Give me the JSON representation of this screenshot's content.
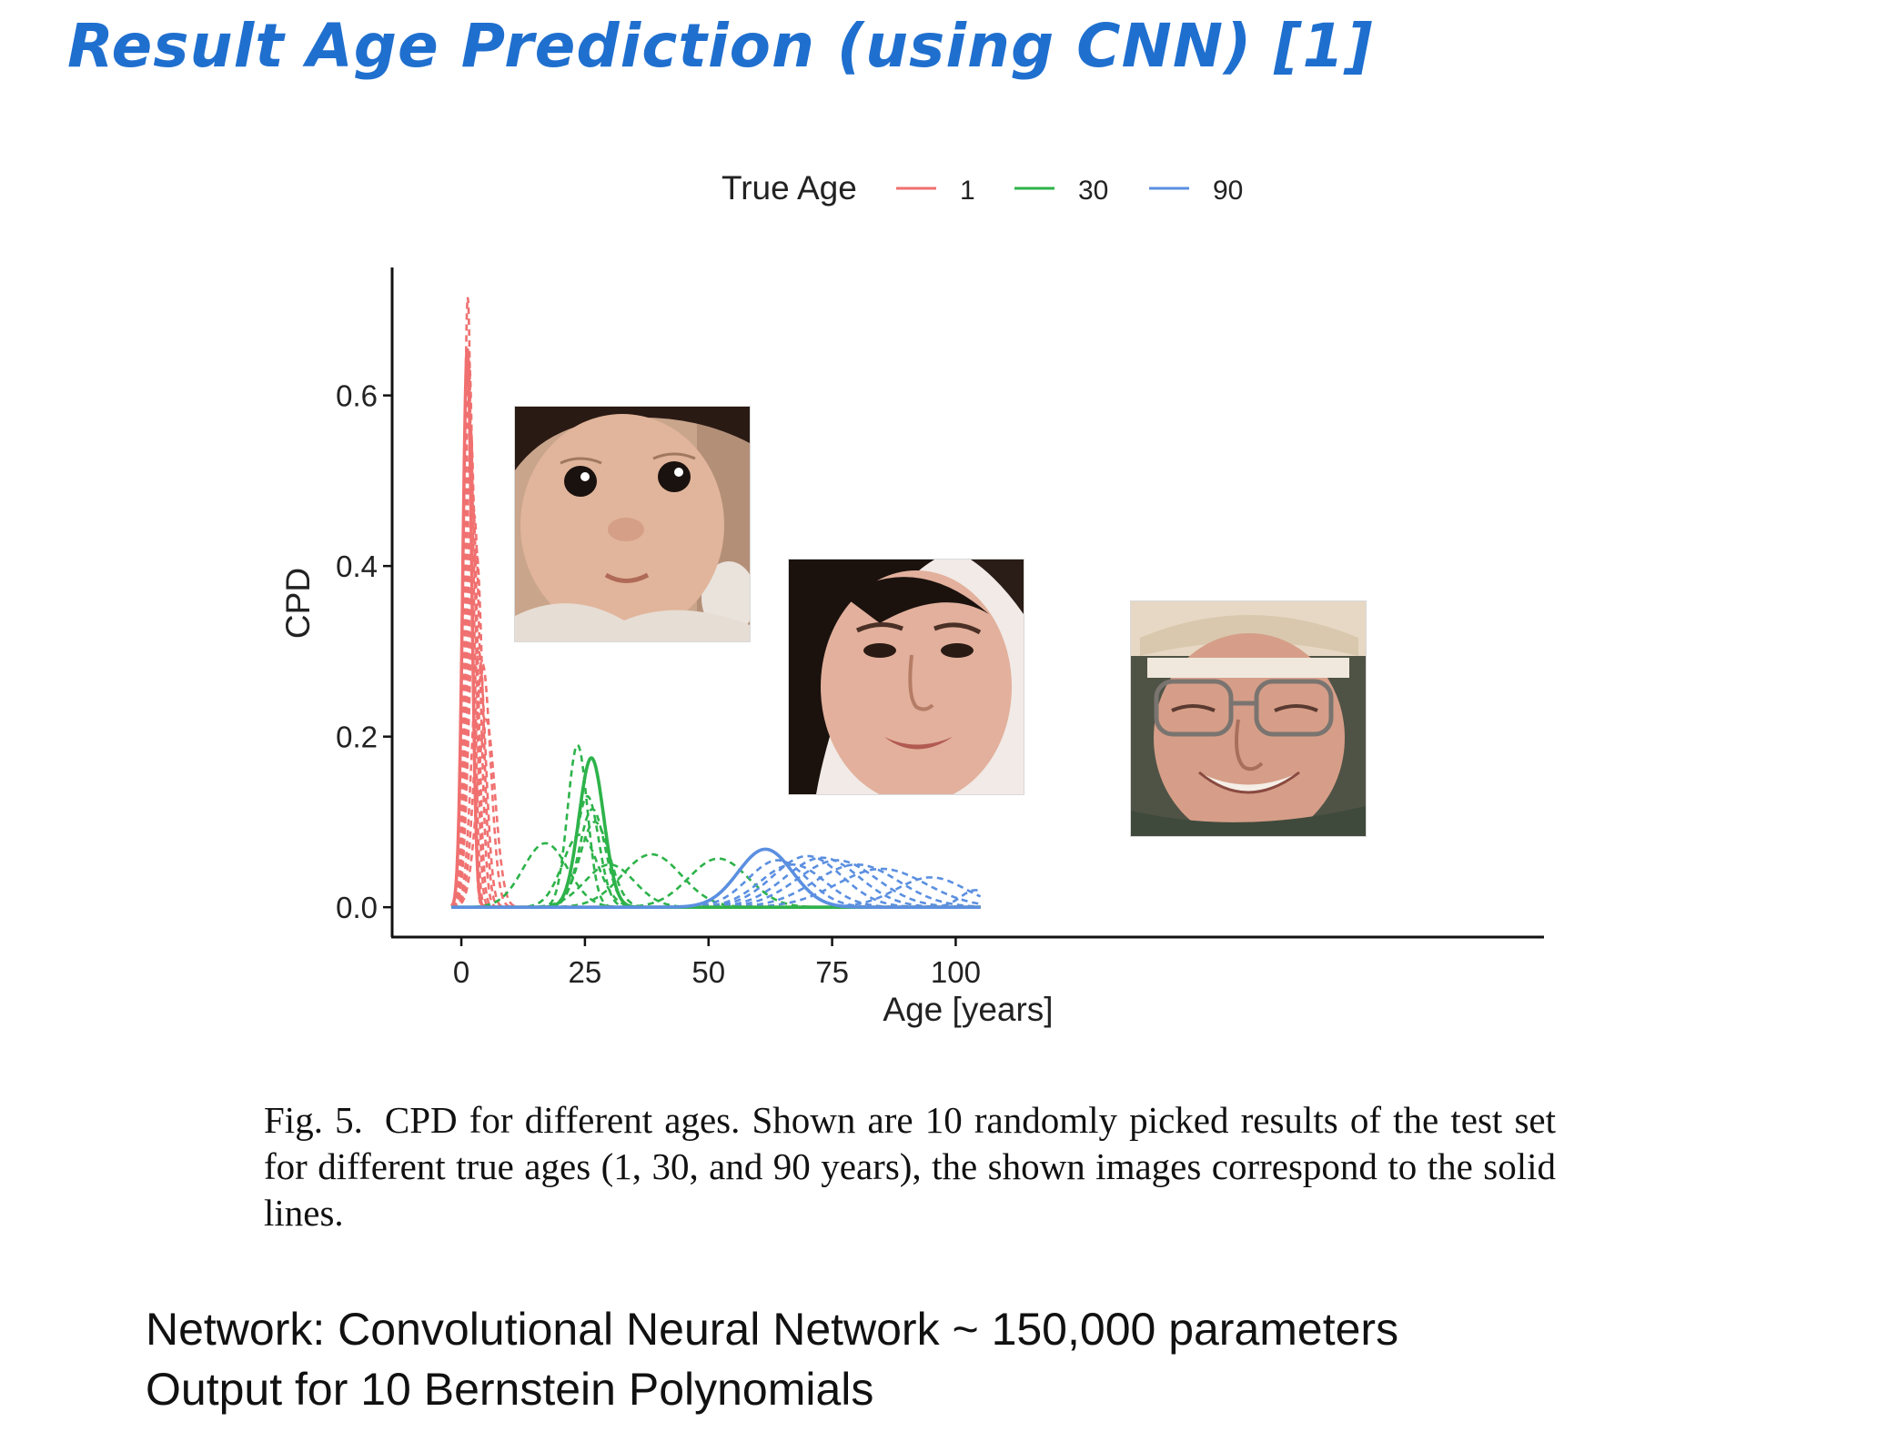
{
  "slide": {
    "title": "Result Age Prediction (using CNN) [1]",
    "title_color": "#1f6fcf"
  },
  "caption": {
    "label": "Fig. 5.",
    "text": "CPD for different ages. Shown are 10 randomly picked results of the test set for different true ages (1, 30, and 90 years), the shown images correspond to the solid lines."
  },
  "notes": {
    "line1": "Network: Convolutional Neural Network ~ 150,000 parameters",
    "line2": "Output for 10 Bernstein Polynomials"
  },
  "photos": [
    {
      "subject": "baby",
      "icon": "baby-face-photo"
    },
    {
      "subject": "young woman",
      "icon": "woman-face-photo"
    },
    {
      "subject": "elderly man",
      "icon": "old-man-face-photo"
    }
  ],
  "chart_data": {
    "type": "line",
    "title": "",
    "xlabel": "Age [years]",
    "ylabel": "CPD",
    "xlim": [
      -14,
      219
    ],
    "ylim": [
      -0.035,
      0.75
    ],
    "xticks": [
      0,
      25,
      50,
      75,
      100
    ],
    "yticks": [
      0.0,
      0.2,
      0.4,
      0.6
    ],
    "ytick_labels": [
      "0.0",
      "0.2",
      "0.4",
      "0.6"
    ],
    "grid": false,
    "legend": {
      "title": "True Age",
      "position": "top",
      "entries": [
        "1",
        "30",
        "90"
      ]
    },
    "curve_domain": [
      -2,
      105
    ],
    "series": [
      {
        "name": "1",
        "color": "#f07070",
        "solid": {
          "mu": 1.2,
          "sigma": 0.9,
          "peak": 0.655
        },
        "dashed": [
          {
            "mu": 1.3,
            "sigma": 0.8,
            "peak": 0.715
          },
          {
            "mu": 1.6,
            "sigma": 0.9,
            "peak": 0.64
          },
          {
            "mu": 1.9,
            "sigma": 1.0,
            "peak": 0.56
          },
          {
            "mu": 2.2,
            "sigma": 1.1,
            "peak": 0.49
          },
          {
            "mu": 2.6,
            "sigma": 1.2,
            "peak": 0.46
          },
          {
            "mu": 3.0,
            "sigma": 1.3,
            "peak": 0.42
          },
          {
            "mu": 3.5,
            "sigma": 1.4,
            "peak": 0.3
          },
          {
            "mu": 4.3,
            "sigma": 1.6,
            "peak": 0.285
          },
          {
            "mu": 5.0,
            "sigma": 1.8,
            "peak": 0.22
          }
        ]
      },
      {
        "name": "30",
        "color": "#2db34a",
        "solid": {
          "mu": 26.3,
          "sigma": 2.5,
          "peak": 0.175
        },
        "dashed": [
          {
            "mu": 23.5,
            "sigma": 2.0,
            "peak": 0.19
          },
          {
            "mu": 25.5,
            "sigma": 2.3,
            "peak": 0.13
          },
          {
            "mu": 26.5,
            "sigma": 2.6,
            "peak": 0.115
          },
          {
            "mu": 27.0,
            "sigma": 3.0,
            "peak": 0.1
          },
          {
            "mu": 17.0,
            "sigma": 4.5,
            "peak": 0.075
          },
          {
            "mu": 24.0,
            "sigma": 3.5,
            "peak": 0.085
          },
          {
            "mu": 38.5,
            "sigma": 6.0,
            "peak": 0.062
          },
          {
            "mu": 52.0,
            "sigma": 6.0,
            "peak": 0.057
          },
          {
            "mu": 30.0,
            "sigma": 5.0,
            "peak": 0.05
          }
        ]
      },
      {
        "name": "90",
        "color": "#5b8fe0",
        "solid": {
          "mu": 61.5,
          "sigma": 5.5,
          "peak": 0.068
        },
        "dashed": [
          {
            "mu": 64.0,
            "sigma": 6.0,
            "peak": 0.055
          },
          {
            "mu": 67.0,
            "sigma": 6.5,
            "peak": 0.05
          },
          {
            "mu": 70.0,
            "sigma": 7.0,
            "peak": 0.06
          },
          {
            "mu": 73.0,
            "sigma": 7.5,
            "peak": 0.058
          },
          {
            "mu": 76.0,
            "sigma": 8.0,
            "peak": 0.055
          },
          {
            "mu": 80.0,
            "sigma": 8.5,
            "peak": 0.05
          },
          {
            "mu": 85.0,
            "sigma": 9.0,
            "peak": 0.045
          },
          {
            "mu": 95.0,
            "sigma": 7.0,
            "peak": 0.035
          },
          {
            "mu": 104.0,
            "sigma": 3.0,
            "peak": 0.02
          }
        ]
      }
    ]
  }
}
